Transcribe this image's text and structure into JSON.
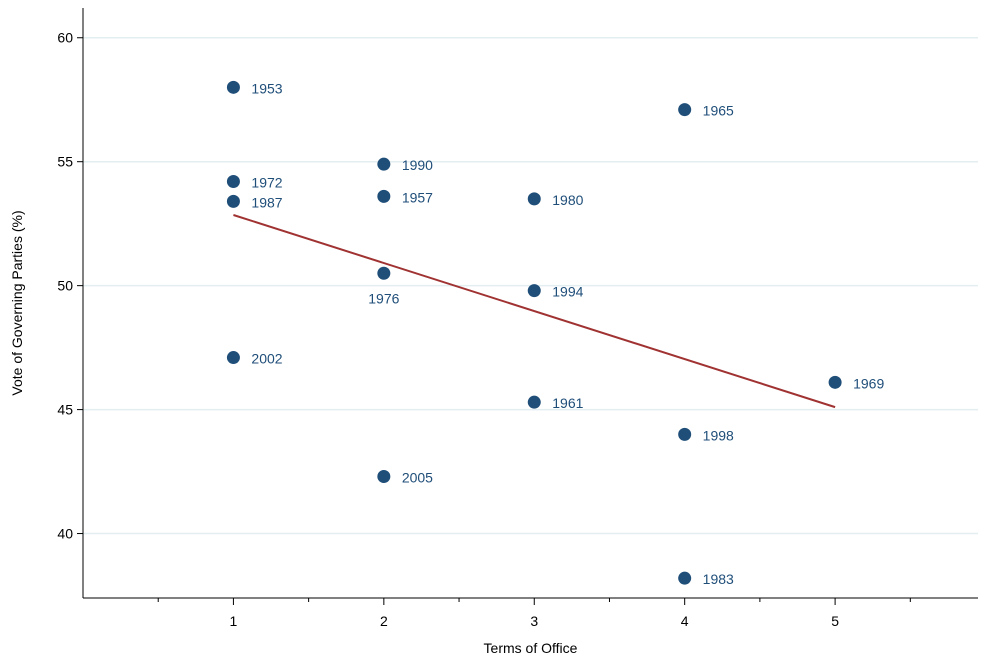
{
  "chart_data": {
    "type": "scatter",
    "title": "",
    "xlabel": "Terms of Office",
    "ylabel": "Vote of Governing Parties (%)",
    "xlim": [
      0,
      5.95
    ],
    "ylim": [
      37.4,
      61.2
    ],
    "x_ticks": [
      1,
      2,
      3,
      4,
      5
    ],
    "y_ticks": [
      40,
      45,
      50,
      55,
      60
    ],
    "grid": true,
    "colors": {
      "points": "#1f4e79",
      "labels": "#1f4e79",
      "fit_line": "#a03232",
      "grid": "#e3eef0"
    },
    "points": [
      {
        "label": "1953",
        "x": 1,
        "y": 58.0,
        "pos": "right"
      },
      {
        "label": "1972",
        "x": 1,
        "y": 54.2,
        "pos": "right"
      },
      {
        "label": "1987",
        "x": 1,
        "y": 53.4,
        "pos": "right"
      },
      {
        "label": "2002",
        "x": 1,
        "y": 47.1,
        "pos": "right"
      },
      {
        "label": "1990",
        "x": 2,
        "y": 54.9,
        "pos": "right"
      },
      {
        "label": "1957",
        "x": 2,
        "y": 53.6,
        "pos": "right"
      },
      {
        "label": "1976",
        "x": 2,
        "y": 50.5,
        "pos": "below"
      },
      {
        "label": "2005",
        "x": 2,
        "y": 42.3,
        "pos": "right"
      },
      {
        "label": "1980",
        "x": 3,
        "y": 53.5,
        "pos": "right"
      },
      {
        "label": "1994",
        "x": 3,
        "y": 49.8,
        "pos": "right"
      },
      {
        "label": "1961",
        "x": 3,
        "y": 45.3,
        "pos": "right"
      },
      {
        "label": "1965",
        "x": 4,
        "y": 57.1,
        "pos": "right"
      },
      {
        "label": "1998",
        "x": 4,
        "y": 44.0,
        "pos": "right"
      },
      {
        "label": "1983",
        "x": 4,
        "y": 38.2,
        "pos": "right"
      },
      {
        "label": "1969",
        "x": 5,
        "y": 46.1,
        "pos": "right"
      }
    ],
    "fit_line": {
      "x": [
        1,
        5
      ],
      "y": [
        52.85,
        45.1
      ]
    }
  }
}
